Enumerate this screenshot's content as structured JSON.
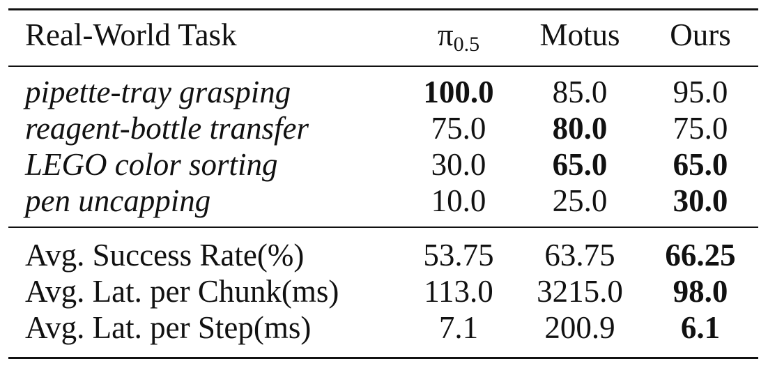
{
  "table": {
    "header": [
      "Real-World Task",
      {
        "base": "π",
        "sub": "0.5"
      },
      "Motus",
      "Ours"
    ],
    "task_rows": [
      [
        "pipette-tray grasping",
        "100.0",
        "85.0",
        "95.0"
      ],
      [
        "reagent-bottle transfer",
        "75.0",
        "80.0",
        "75.0"
      ],
      [
        "LEGO color sorting",
        "30.0",
        "65.0",
        "65.0"
      ],
      [
        "pen uncapping",
        "10.0",
        "25.0",
        "30.0"
      ]
    ],
    "summary_rows": [
      [
        "Avg. Success Rate(%)",
        "53.75",
        "63.75",
        "66.25"
      ],
      [
        "Avg. Lat. per Chunk(ms)",
        "113.0",
        "3215.0",
        "98.0"
      ],
      [
        "Avg. Lat. per Step(ms)",
        "7.1",
        "200.9",
        "6.1"
      ]
    ]
  }
}
